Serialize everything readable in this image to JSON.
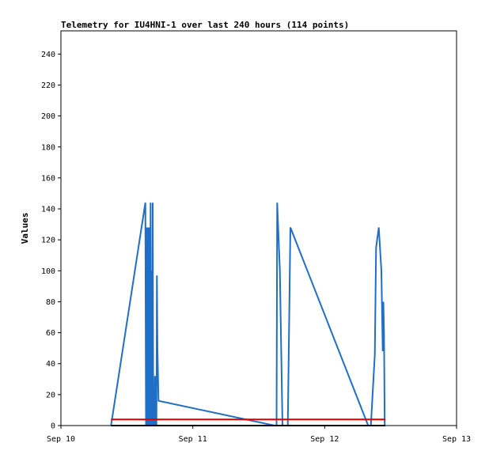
{
  "chart_data": {
    "type": "line",
    "title": "Telemetry for IU4HNI-1 over last 240 hours (114 points)",
    "xlabel": "",
    "ylabel": "Values",
    "x_unit": "days",
    "x_ticks": [
      {
        "value": 0,
        "label": "Sep 10"
      },
      {
        "value": 1,
        "label": "Sep 11"
      },
      {
        "value": 2,
        "label": "Sep 12"
      },
      {
        "value": 3,
        "label": "Sep 13"
      }
    ],
    "xlim": [
      0,
      3
    ],
    "ylim": [
      0,
      255
    ],
    "y_ticks": [
      0,
      20,
      40,
      60,
      80,
      100,
      120,
      140,
      160,
      180,
      200,
      220,
      240
    ],
    "grid": false,
    "legend": "none",
    "series": [
      {
        "color": "#1f6fc8",
        "points": [
          [
            0.38,
            0
          ],
          [
            0.64,
            144
          ],
          [
            0.645,
            0
          ],
          [
            0.648,
            128
          ],
          [
            0.652,
            0
          ],
          [
            0.656,
            128
          ],
          [
            0.66,
            0
          ],
          [
            0.664,
            128
          ],
          [
            0.668,
            0
          ],
          [
            0.672,
            128
          ],
          [
            0.676,
            0
          ],
          [
            0.68,
            144
          ],
          [
            0.684,
            0
          ],
          [
            0.688,
            100
          ],
          [
            0.692,
            0
          ],
          [
            0.696,
            144
          ],
          [
            0.7,
            0
          ],
          [
            0.71,
            0
          ],
          [
            0.712,
            32
          ],
          [
            0.716,
            0
          ],
          [
            0.72,
            32
          ],
          [
            0.724,
            0
          ],
          [
            0.728,
            97
          ],
          [
            0.732,
            50
          ],
          [
            0.74,
            16
          ],
          [
            1.62,
            0
          ],
          [
            1.635,
            0
          ],
          [
            1.64,
            144
          ],
          [
            1.66,
            100
          ],
          [
            1.68,
            0
          ],
          [
            1.72,
            0
          ],
          [
            1.74,
            128
          ],
          [
            2.33,
            0
          ],
          [
            2.35,
            0
          ],
          [
            2.38,
            46
          ],
          [
            2.39,
            115
          ],
          [
            2.41,
            128
          ],
          [
            2.43,
            100
          ],
          [
            2.44,
            48
          ],
          [
            2.445,
            80
          ],
          [
            2.45,
            60
          ],
          [
            2.455,
            0
          ],
          [
            2.46,
            0
          ]
        ]
      },
      {
        "color": "#e00000",
        "points": [
          [
            0.38,
            4
          ],
          [
            2.46,
            4
          ]
        ]
      },
      {
        "color": "#000000",
        "points": [
          [
            0.38,
            0
          ],
          [
            2.46,
            0
          ]
        ]
      }
    ]
  }
}
